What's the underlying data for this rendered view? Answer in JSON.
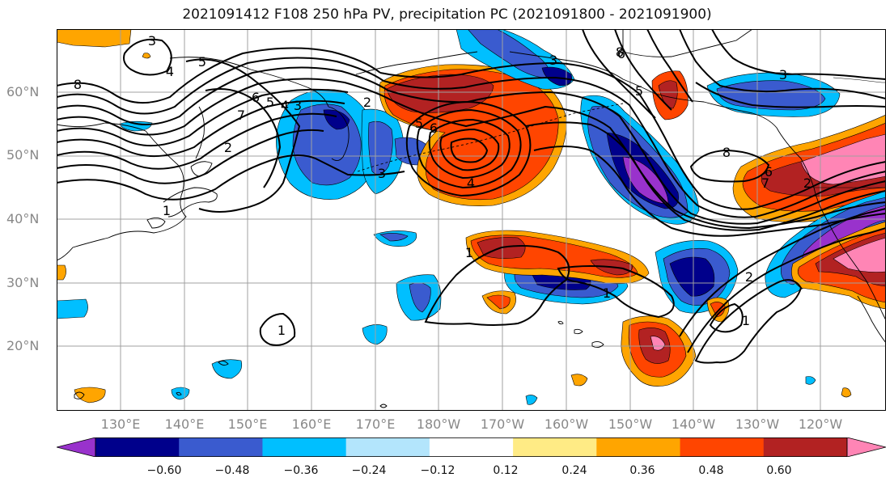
{
  "title": "2021091412 F108 250 hPa PV, precipitation PC (2021091800 - 2021091900)",
  "lat_labels": [
    "60°N",
    "50°N",
    "40°N",
    "30°N",
    "20°N"
  ],
  "lon_labels": [
    "130°E",
    "140°E",
    "150°E",
    "160°E",
    "170°E",
    "180°W",
    "170°W",
    "160°W",
    "150°W",
    "140°W",
    "130°W",
    "120°W"
  ],
  "contour_labels": [
    "3",
    "4",
    "5",
    "8",
    "7",
    "6",
    "5",
    "4",
    "3",
    "2",
    "1",
    "2",
    "3",
    "5",
    "6",
    "4",
    "3",
    "6",
    "5",
    "8",
    "7",
    "6",
    "1",
    "1",
    "2",
    "1",
    "1",
    "8",
    "3",
    "2"
  ],
  "colorbar": {
    "labels": [
      "−0.60",
      "−0.48",
      "−0.36",
      "−0.24",
      "−0.12",
      "0.12",
      "0.24",
      "0.36",
      "0.48",
      "0.60"
    ],
    "colors": [
      "#9932cc",
      "#00008b",
      "#3a5bcf",
      "#00bfff",
      "#b3e5fc",
      "#ffffff",
      "#ffeb85",
      "#ffa500",
      "#ff4500",
      "#b22222",
      "#ff85b5"
    ]
  },
  "colors": {
    "contour": "#000000",
    "coast": "#000000",
    "grid": "#a0a0a0",
    "tick_label": "#888888"
  }
}
